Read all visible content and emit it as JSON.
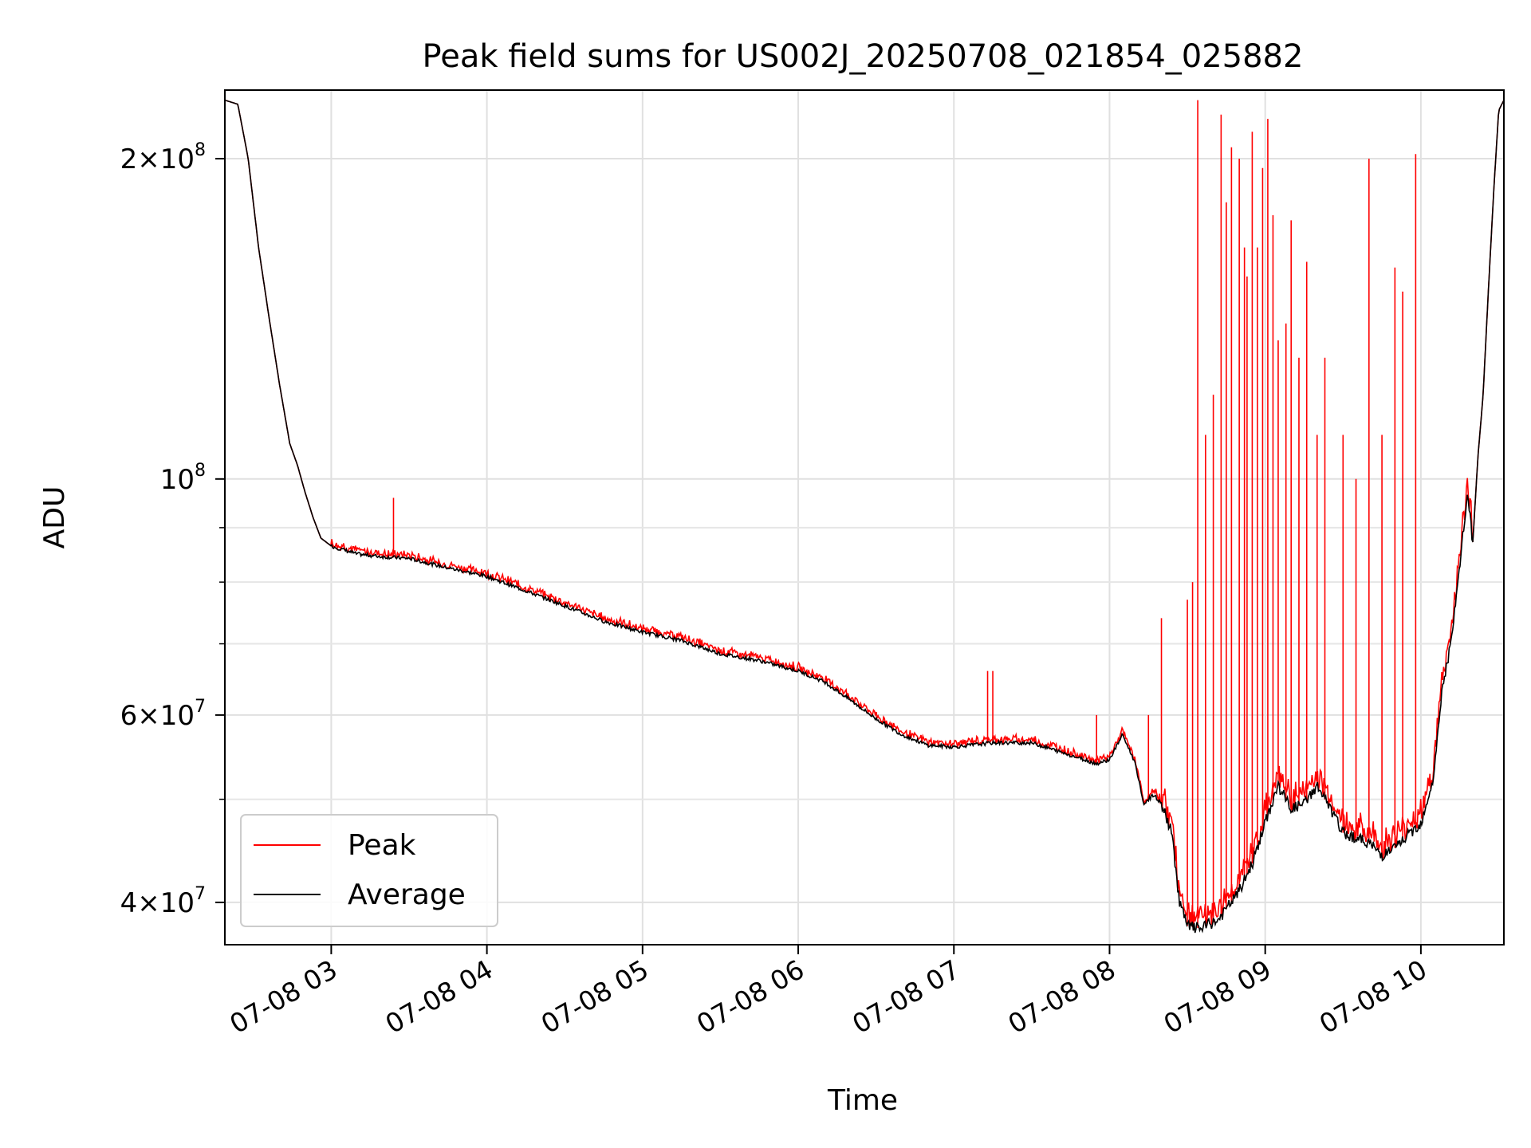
{
  "chart_data": {
    "type": "line",
    "title": "Peak field sums for US002J_20250708_021854_025882",
    "xlabel": "Time",
    "ylabel": "ADU",
    "x_ticks": [
      "07-08 03",
      "07-08 04",
      "07-08 05",
      "07-08 06",
      "07-08 07",
      "07-08 08",
      "07-08 09",
      "07-08 10"
    ],
    "x_range": [
      "2025-07-08T02:19",
      "2025-07-08T10:32"
    ],
    "y_scale": "log",
    "y_range": [
      36500000,
      232000000
    ],
    "y_ticks": [
      {
        "value": 40000000,
        "base": "4",
        "exp": "7"
      },
      {
        "value": 60000000,
        "base": "6",
        "exp": "7"
      },
      {
        "value": 100000000,
        "base": "",
        "exp": "8"
      },
      {
        "value": 200000000,
        "base": "2",
        "exp": "8"
      }
    ],
    "y_minor_ticks": [
      50000000,
      70000000,
      80000000,
      90000000
    ],
    "grid": true,
    "legend": {
      "position": "lower-left",
      "entries": [
        {
          "label": "Peak",
          "color": "#ff0000"
        },
        {
          "label": "Average",
          "color": "#000000"
        }
      ]
    },
    "series": [
      {
        "name": "Average",
        "color": "#000000",
        "points": [
          [
            "02:19",
            227000000
          ],
          [
            "02:24",
            225000000
          ],
          [
            "02:28",
            200000000
          ],
          [
            "02:32",
            165000000
          ],
          [
            "02:36",
            142000000
          ],
          [
            "02:40",
            123000000
          ],
          [
            "02:44",
            108000000
          ],
          [
            "02:47",
            103000000
          ],
          [
            "02:50",
            97000000
          ],
          [
            "02:53",
            92000000
          ],
          [
            "02:56",
            88000000
          ],
          [
            "03:00",
            86500000
          ],
          [
            "03:10",
            85000000
          ],
          [
            "03:20",
            84500000
          ],
          [
            "03:30",
            84200000
          ],
          [
            "03:45",
            82500000
          ],
          [
            "04:00",
            81000000
          ],
          [
            "04:15",
            78500000
          ],
          [
            "04:30",
            76000000
          ],
          [
            "04:45",
            73500000
          ],
          [
            "05:00",
            71800000
          ],
          [
            "05:15",
            70500000
          ],
          [
            "05:30",
            68500000
          ],
          [
            "05:45",
            67500000
          ],
          [
            "06:00",
            66000000
          ],
          [
            "06:10",
            64500000
          ],
          [
            "06:20",
            62000000
          ],
          [
            "06:30",
            59500000
          ],
          [
            "06:40",
            57500000
          ],
          [
            "06:50",
            56200000
          ],
          [
            "07:00",
            56000000
          ],
          [
            "07:15",
            56500000
          ],
          [
            "07:30",
            56500000
          ],
          [
            "07:40",
            55500000
          ],
          [
            "07:50",
            54500000
          ],
          [
            "07:55",
            54000000
          ],
          [
            "08:00",
            54500000
          ],
          [
            "08:05",
            57500000
          ],
          [
            "08:10",
            54000000
          ],
          [
            "08:13",
            49500000
          ],
          [
            "08:17",
            50500000
          ],
          [
            "08:20",
            49500000
          ],
          [
            "08:24",
            46500000
          ],
          [
            "08:27",
            40000000
          ],
          [
            "08:30",
            38000000
          ],
          [
            "08:35",
            37800000
          ],
          [
            "08:42",
            38500000
          ],
          [
            "08:50",
            41000000
          ],
          [
            "08:55",
            43500000
          ],
          [
            "09:00",
            47500000
          ],
          [
            "09:05",
            51500000
          ],
          [
            "09:10",
            49000000
          ],
          [
            "09:15",
            49500000
          ],
          [
            "09:20",
            51500000
          ],
          [
            "09:25",
            49000000
          ],
          [
            "09:30",
            46500000
          ],
          [
            "09:35",
            46000000
          ],
          [
            "09:40",
            45500000
          ],
          [
            "09:45",
            44300000
          ],
          [
            "09:50",
            45000000
          ],
          [
            "10:00",
            47500000
          ],
          [
            "10:05",
            52500000
          ],
          [
            "10:08",
            63000000
          ],
          [
            "10:12",
            71000000
          ],
          [
            "10:15",
            83000000
          ],
          [
            "10:18",
            97000000
          ],
          [
            "10:20",
            87000000
          ],
          [
            "10:22",
            105000000
          ],
          [
            "10:24",
            120000000
          ],
          [
            "10:26",
            150000000
          ],
          [
            "10:28",
            185000000
          ],
          [
            "10:30",
            222000000
          ],
          [
            "10:32",
            227000000
          ]
        ]
      },
      {
        "name": "Peak",
        "color": "#ff0000",
        "baseline": "Average",
        "spikes": [
          [
            "03:24",
            96000000
          ],
          [
            "07:13",
            66000000
          ],
          [
            "07:15",
            66000000
          ],
          [
            "07:55",
            60000000
          ],
          [
            "08:15",
            60000000
          ],
          [
            "08:20",
            74000000
          ],
          [
            "08:30",
            77000000
          ],
          [
            "08:32",
            80000000
          ],
          [
            "08:34",
            227000000
          ],
          [
            "08:37",
            110000000
          ],
          [
            "08:40",
            120000000
          ],
          [
            "08:43",
            220000000
          ],
          [
            "08:45",
            182000000
          ],
          [
            "08:47",
            205000000
          ],
          [
            "08:50",
            200000000
          ],
          [
            "08:52",
            165000000
          ],
          [
            "08:53",
            155000000
          ],
          [
            "08:55",
            212000000
          ],
          [
            "08:57",
            165000000
          ],
          [
            "08:59",
            196000000
          ],
          [
            "09:01",
            218000000
          ],
          [
            "09:03",
            177000000
          ],
          [
            "09:05",
            135000000
          ],
          [
            "09:08",
            140000000
          ],
          [
            "09:10",
            175000000
          ],
          [
            "09:13",
            130000000
          ],
          [
            "09:16",
            160000000
          ],
          [
            "09:20",
            110000000
          ],
          [
            "09:23",
            130000000
          ],
          [
            "09:30",
            110000000
          ],
          [
            "09:35",
            100000000
          ],
          [
            "09:40",
            200000000
          ],
          [
            "09:45",
            110000000
          ],
          [
            "09:50",
            158000000
          ],
          [
            "09:53",
            150000000
          ],
          [
            "09:58",
            202000000
          ]
        ]
      }
    ]
  }
}
